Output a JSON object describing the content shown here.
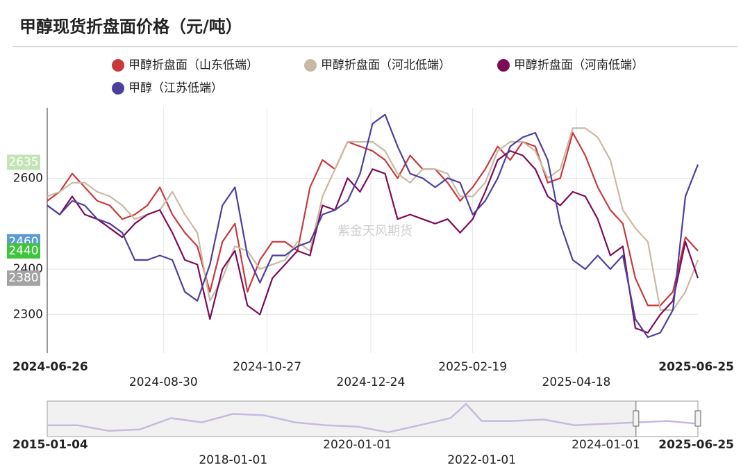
{
  "chart_data": {
    "type": "line",
    "title": "甲醇现货折盘面价格（元/吨）",
    "watermark": "紫金天风期货",
    "xlim": [
      "2024-06-26",
      "2025-06-25"
    ],
    "xticks": [
      "2024-08-30",
      "2024-10-27",
      "2024-12-24",
      "2025-02-19",
      "2025-04-18"
    ],
    "ylim": [
      2215,
      2755
    ],
    "yticks": [
      2300,
      2400,
      2600
    ],
    "grid": true,
    "x": [
      "2024-06-26",
      "2024-07-03",
      "2024-07-10",
      "2024-07-17",
      "2024-07-24",
      "2024-07-31",
      "2024-08-07",
      "2024-08-14",
      "2024-08-21",
      "2024-08-28",
      "2024-09-04",
      "2024-09-11",
      "2024-09-18",
      "2024-09-25",
      "2024-10-02",
      "2024-10-09",
      "2024-10-16",
      "2024-10-23",
      "2024-10-30",
      "2024-11-06",
      "2024-11-13",
      "2024-11-20",
      "2024-11-27",
      "2024-12-04",
      "2024-12-11",
      "2024-12-18",
      "2024-12-25",
      "2025-01-01",
      "2025-01-08",
      "2025-01-15",
      "2025-01-22",
      "2025-01-29",
      "2025-02-05",
      "2025-02-12",
      "2025-02-19",
      "2025-02-26",
      "2025-03-05",
      "2025-03-12",
      "2025-03-19",
      "2025-03-26",
      "2025-04-02",
      "2025-04-09",
      "2025-04-16",
      "2025-04-23",
      "2025-04-30",
      "2025-05-07",
      "2025-05-14",
      "2025-05-21",
      "2025-05-28",
      "2025-06-04",
      "2025-06-11",
      "2025-06-18",
      "2025-06-25"
    ],
    "series": [
      {
        "name": "甲醇折盘面（山东低端）",
        "color": "#c8393b",
        "values": [
          2550,
          2570,
          2610,
          2580,
          2550,
          2540,
          2510,
          2520,
          2540,
          2580,
          2520,
          2480,
          2450,
          2350,
          2460,
          2500,
          2350,
          2420,
          2460,
          2460,
          2440,
          2580,
          2640,
          2620,
          2680,
          2670,
          2660,
          2640,
          2600,
          2650,
          2620,
          2620,
          2590,
          2550,
          2580,
          2620,
          2670,
          2640,
          2680,
          2670,
          2590,
          2600,
          2700,
          2650,
          2580,
          2530,
          2500,
          2380,
          2320,
          2320,
          2350,
          2470,
          2440
        ]
      },
      {
        "name": "甲醇折盘面（河北低端）",
        "color": "#c9b9a3",
        "values": [
          2560,
          2570,
          2590,
          2590,
          2570,
          2560,
          2540,
          2510,
          2520,
          2530,
          2570,
          2520,
          2480,
          2330,
          2380,
          2450,
          2440,
          2400,
          2410,
          2420,
          2460,
          2440,
          2560,
          2620,
          2680,
          2680,
          2680,
          2660,
          2610,
          2590,
          2620,
          2620,
          2610,
          2560,
          2560,
          2590,
          2660,
          2680,
          2680,
          2660,
          2600,
          2620,
          2710,
          2710,
          2690,
          2640,
          2530,
          2490,
          2460,
          2310,
          2310,
          2350,
          2420
        ]
      },
      {
        "name": "甲醇折盘面（河南低端）",
        "color": "#7d0a55",
        "values": [
          2540,
          2520,
          2560,
          2520,
          2510,
          2490,
          2470,
          2500,
          2520,
          2530,
          2480,
          2420,
          2410,
          2290,
          2400,
          2440,
          2320,
          2300,
          2380,
          2410,
          2440,
          2430,
          2540,
          2530,
          2600,
          2570,
          2620,
          2610,
          2510,
          2520,
          2510,
          2500,
          2510,
          2480,
          2510,
          2570,
          2640,
          2660,
          2650,
          2620,
          2560,
          2540,
          2570,
          2560,
          2510,
          2430,
          2450,
          2270,
          2260,
          2300,
          2330,
          2460,
          2380
        ]
      },
      {
        "name": "甲醇（江苏低端）",
        "color": "#4d3f9e",
        "values": [
          2540,
          2520,
          2550,
          2540,
          2510,
          2500,
          2480,
          2420,
          2420,
          2430,
          2420,
          2350,
          2330,
          2410,
          2540,
          2580,
          2430,
          2370,
          2430,
          2430,
          2450,
          2460,
          2520,
          2530,
          2550,
          2610,
          2720,
          2740,
          2670,
          2610,
          2600,
          2580,
          2600,
          2590,
          2520,
          2550,
          2600,
          2670,
          2690,
          2700,
          2640,
          2500,
          2420,
          2400,
          2430,
          2400,
          2430,
          2290,
          2250,
          2260,
          2310,
          2560,
          2630
        ]
      }
    ],
    "badges": [
      {
        "value": 2635,
        "color": "#c3e4b6"
      },
      {
        "value": 2460,
        "color": "#5b9bd5"
      },
      {
        "value": 2440,
        "color": "#3ec43e"
      },
      {
        "value": 2380,
        "color": "#a3a3a3"
      }
    ],
    "navigator": {
      "xlim": [
        "2015-01-04",
        "2025-06-25"
      ],
      "xticks": [
        "2018-01-01",
        "2020-01-01",
        "2022-01-01",
        "2024-01-01"
      ],
      "ylim": [
        1500,
        4000
      ],
      "color": "#c9b6e4",
      "x": [
        "2015-01-04",
        "2015-07-01",
        "2016-01-01",
        "2016-07-01",
        "2017-01-01",
        "2017-07-01",
        "2018-01-01",
        "2018-07-01",
        "2019-01-01",
        "2019-07-01",
        "2020-01-01",
        "2020-07-01",
        "2021-01-01",
        "2021-07-01",
        "2021-10-01",
        "2022-01-01",
        "2022-07-01",
        "2023-01-01",
        "2023-07-01",
        "2024-01-01",
        "2024-07-01",
        "2025-01-01",
        "2025-06-25"
      ],
      "values": [
        2300,
        2300,
        1900,
        2000,
        2800,
        2500,
        3100,
        3000,
        2500,
        2300,
        2200,
        1800,
        2300,
        2800,
        3800,
        2600,
        2600,
        2700,
        2300,
        2400,
        2500,
        2600,
        2400
      ]
    }
  }
}
